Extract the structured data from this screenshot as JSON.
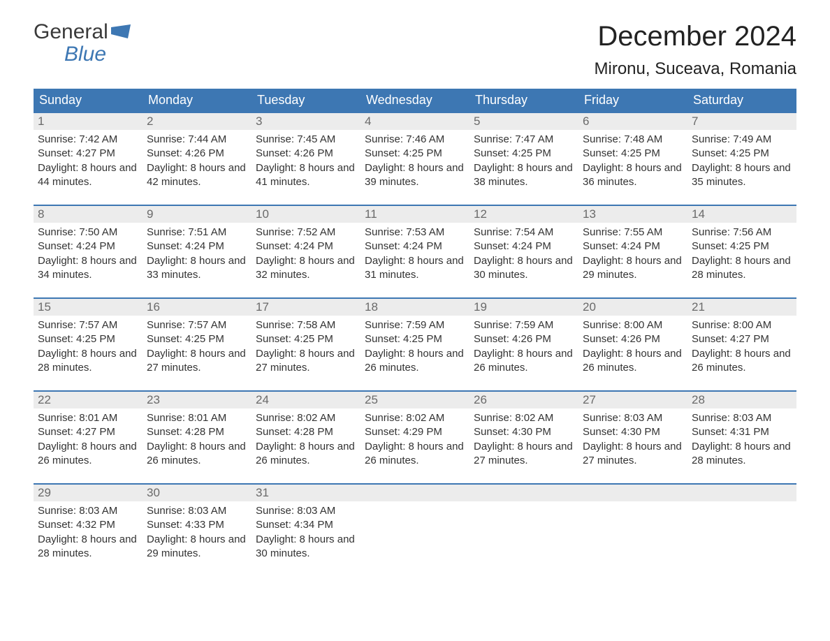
{
  "logo": {
    "word1": "General",
    "word2": "Blue",
    "flag_color": "#3d77b3"
  },
  "title": "December 2024",
  "location": "Mironu, Suceava, Romania",
  "colors": {
    "header_bg": "#3d77b3",
    "header_text": "#ffffff",
    "daynum_bg": "#ececec",
    "daynum_text": "#6a6a6a",
    "body_text": "#333333",
    "border": "#3d77b3",
    "page_bg": "#ffffff"
  },
  "typography": {
    "title_fontsize": 40,
    "location_fontsize": 24,
    "header_fontsize": 18,
    "daynum_fontsize": 17,
    "body_fontsize": 15
  },
  "weekdays": [
    "Sunday",
    "Monday",
    "Tuesday",
    "Wednesday",
    "Thursday",
    "Friday",
    "Saturday"
  ],
  "labels": {
    "sunrise": "Sunrise:",
    "sunset": "Sunset:",
    "daylight": "Daylight:"
  },
  "weeks": [
    [
      {
        "day": "1",
        "sunrise": "7:42 AM",
        "sunset": "4:27 PM",
        "daylight": "8 hours and 44 minutes."
      },
      {
        "day": "2",
        "sunrise": "7:44 AM",
        "sunset": "4:26 PM",
        "daylight": "8 hours and 42 minutes."
      },
      {
        "day": "3",
        "sunrise": "7:45 AM",
        "sunset": "4:26 PM",
        "daylight": "8 hours and 41 minutes."
      },
      {
        "day": "4",
        "sunrise": "7:46 AM",
        "sunset": "4:25 PM",
        "daylight": "8 hours and 39 minutes."
      },
      {
        "day": "5",
        "sunrise": "7:47 AM",
        "sunset": "4:25 PM",
        "daylight": "8 hours and 38 minutes."
      },
      {
        "day": "6",
        "sunrise": "7:48 AM",
        "sunset": "4:25 PM",
        "daylight": "8 hours and 36 minutes."
      },
      {
        "day": "7",
        "sunrise": "7:49 AM",
        "sunset": "4:25 PM",
        "daylight": "8 hours and 35 minutes."
      }
    ],
    [
      {
        "day": "8",
        "sunrise": "7:50 AM",
        "sunset": "4:24 PM",
        "daylight": "8 hours and 34 minutes."
      },
      {
        "day": "9",
        "sunrise": "7:51 AM",
        "sunset": "4:24 PM",
        "daylight": "8 hours and 33 minutes."
      },
      {
        "day": "10",
        "sunrise": "7:52 AM",
        "sunset": "4:24 PM",
        "daylight": "8 hours and 32 minutes."
      },
      {
        "day": "11",
        "sunrise": "7:53 AM",
        "sunset": "4:24 PM",
        "daylight": "8 hours and 31 minutes."
      },
      {
        "day": "12",
        "sunrise": "7:54 AM",
        "sunset": "4:24 PM",
        "daylight": "8 hours and 30 minutes."
      },
      {
        "day": "13",
        "sunrise": "7:55 AM",
        "sunset": "4:24 PM",
        "daylight": "8 hours and 29 minutes."
      },
      {
        "day": "14",
        "sunrise": "7:56 AM",
        "sunset": "4:25 PM",
        "daylight": "8 hours and 28 minutes."
      }
    ],
    [
      {
        "day": "15",
        "sunrise": "7:57 AM",
        "sunset": "4:25 PM",
        "daylight": "8 hours and 28 minutes."
      },
      {
        "day": "16",
        "sunrise": "7:57 AM",
        "sunset": "4:25 PM",
        "daylight": "8 hours and 27 minutes."
      },
      {
        "day": "17",
        "sunrise": "7:58 AM",
        "sunset": "4:25 PM",
        "daylight": "8 hours and 27 minutes."
      },
      {
        "day": "18",
        "sunrise": "7:59 AM",
        "sunset": "4:25 PM",
        "daylight": "8 hours and 26 minutes."
      },
      {
        "day": "19",
        "sunrise": "7:59 AM",
        "sunset": "4:26 PM",
        "daylight": "8 hours and 26 minutes."
      },
      {
        "day": "20",
        "sunrise": "8:00 AM",
        "sunset": "4:26 PM",
        "daylight": "8 hours and 26 minutes."
      },
      {
        "day": "21",
        "sunrise": "8:00 AM",
        "sunset": "4:27 PM",
        "daylight": "8 hours and 26 minutes."
      }
    ],
    [
      {
        "day": "22",
        "sunrise": "8:01 AM",
        "sunset": "4:27 PM",
        "daylight": "8 hours and 26 minutes."
      },
      {
        "day": "23",
        "sunrise": "8:01 AM",
        "sunset": "4:28 PM",
        "daylight": "8 hours and 26 minutes."
      },
      {
        "day": "24",
        "sunrise": "8:02 AM",
        "sunset": "4:28 PM",
        "daylight": "8 hours and 26 minutes."
      },
      {
        "day": "25",
        "sunrise": "8:02 AM",
        "sunset": "4:29 PM",
        "daylight": "8 hours and 26 minutes."
      },
      {
        "day": "26",
        "sunrise": "8:02 AM",
        "sunset": "4:30 PM",
        "daylight": "8 hours and 27 minutes."
      },
      {
        "day": "27",
        "sunrise": "8:03 AM",
        "sunset": "4:30 PM",
        "daylight": "8 hours and 27 minutes."
      },
      {
        "day": "28",
        "sunrise": "8:03 AM",
        "sunset": "4:31 PM",
        "daylight": "8 hours and 28 minutes."
      }
    ],
    [
      {
        "day": "29",
        "sunrise": "8:03 AM",
        "sunset": "4:32 PM",
        "daylight": "8 hours and 28 minutes."
      },
      {
        "day": "30",
        "sunrise": "8:03 AM",
        "sunset": "4:33 PM",
        "daylight": "8 hours and 29 minutes."
      },
      {
        "day": "31",
        "sunrise": "8:03 AM",
        "sunset": "4:34 PM",
        "daylight": "8 hours and 30 minutes."
      },
      null,
      null,
      null,
      null
    ]
  ]
}
